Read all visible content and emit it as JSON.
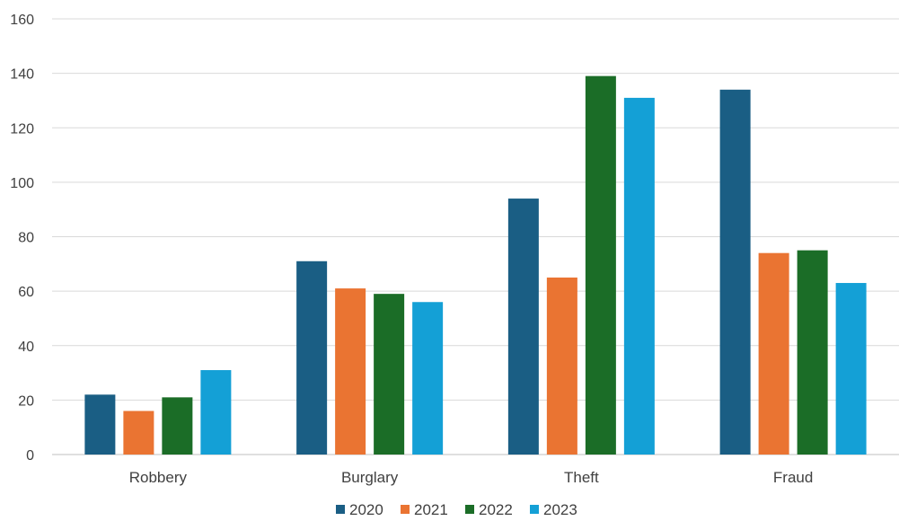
{
  "chart_data": {
    "type": "bar",
    "categories": [
      "Robbery",
      "Burglary",
      "Theft",
      "Fraud"
    ],
    "series": [
      {
        "name": "2020",
        "color": "#1a5e84",
        "values": [
          22,
          71,
          94,
          134
        ]
      },
      {
        "name": "2021",
        "color": "#ea7432",
        "values": [
          16,
          61,
          65,
          74
        ]
      },
      {
        "name": "2022",
        "color": "#1b6d27",
        "values": [
          21,
          59,
          139,
          75
        ]
      },
      {
        "name": "2023",
        "color": "#14a0d6",
        "values": [
          31,
          56,
          131,
          63
        ]
      }
    ],
    "yticks": [
      0,
      20,
      40,
      60,
      80,
      100,
      120,
      140,
      160
    ],
    "ylim": [
      0,
      160
    ],
    "grid": true,
    "legend_position": "bottom"
  }
}
